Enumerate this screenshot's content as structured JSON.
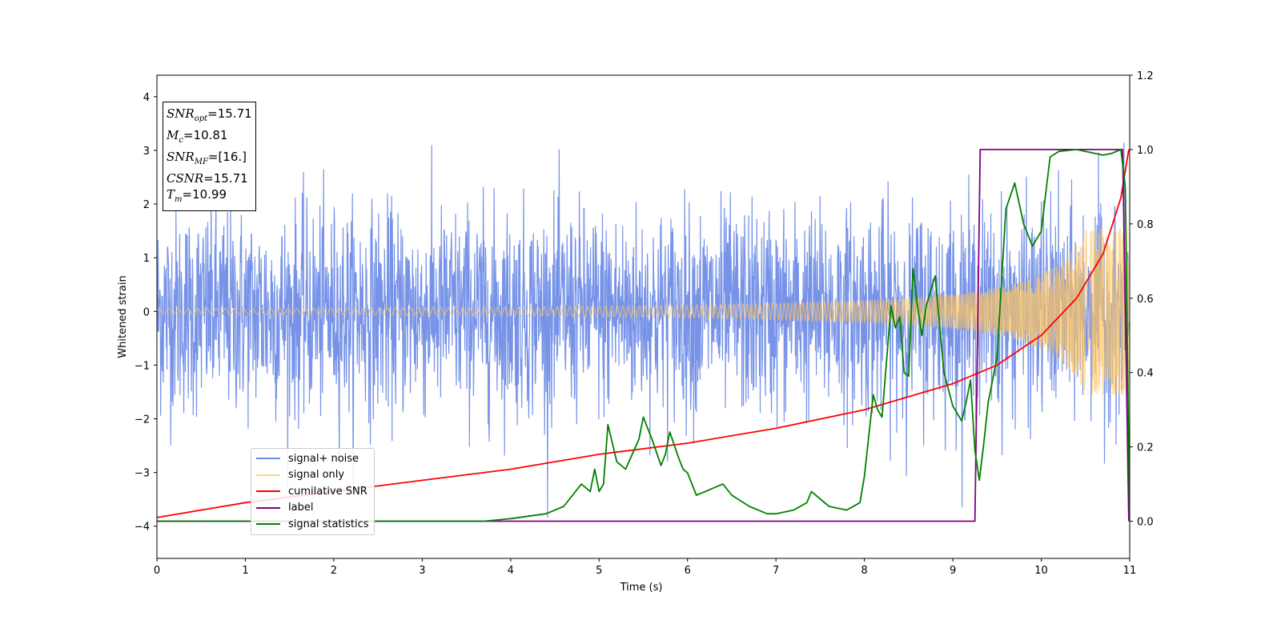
{
  "chart_data": {
    "type": "line",
    "xlabel": "Time (s)",
    "ylabel": "Whitened strain",
    "xlim": [
      0,
      11
    ],
    "ylim_left": [
      -4.6,
      4.4
    ],
    "ylim_right": [
      -0.1,
      1.2
    ],
    "xticks": [
      "0",
      "1",
      "2",
      "3",
      "4",
      "5",
      "6",
      "7",
      "8",
      "9",
      "10",
      "11"
    ],
    "yticks_left": [
      "4",
      "3",
      "2",
      "1",
      "0",
      "−1",
      "−2",
      "−3",
      "−4"
    ],
    "yticks_left_values": [
      4,
      3,
      2,
      1,
      0,
      -1,
      -2,
      -3,
      -4
    ],
    "yticks_right": [
      "1.2",
      "1.0",
      "0.8",
      "0.6",
      "0.4",
      "0.2",
      "0.0"
    ],
    "yticks_right_values": [
      1.2,
      1.0,
      0.8,
      0.6,
      0.4,
      0.2,
      0.0
    ],
    "series": [
      {
        "name": "signal+ noise",
        "axis": "left",
        "color": "#6b8ae6",
        "description": "whitened strain: Gaussian noise (std approx 1, spikes to about 4) plus signal",
        "time_range": [
          0,
          10.99
        ]
      },
      {
        "name": "signal only",
        "axis": "left",
        "color": "#ffc55f",
        "description": "chirp with amplitude rising from about 0.05 at t=0 to about 1.5 at t=10.95",
        "time_range": [
          0,
          10.99
        ]
      },
      {
        "name": "cumilative SNR",
        "axis": "right",
        "color": "#ff0000",
        "x": [
          0,
          1,
          2,
          3,
          4,
          5,
          6,
          7,
          8,
          9,
          9.5,
          10,
          10.4,
          10.7,
          10.9,
          10.99
        ],
        "values": [
          0.01,
          0.05,
          0.08,
          0.11,
          0.14,
          0.18,
          0.21,
          0.25,
          0.3,
          0.37,
          0.42,
          0.5,
          0.6,
          0.72,
          0.87,
          1.0
        ]
      },
      {
        "name": "label",
        "axis": "right",
        "color": "#800080",
        "x": [
          0,
          9.25,
          9.31,
          10.92,
          10.99
        ],
        "values": [
          0,
          0,
          1,
          1,
          0
        ]
      },
      {
        "name": "signal statistics",
        "axis": "right",
        "color": "#008000",
        "x": [
          0,
          1,
          2,
          3,
          3.7,
          4,
          4.4,
          4.6,
          4.8,
          4.9,
          4.95,
          5.0,
          5.05,
          5.1,
          5.2,
          5.3,
          5.45,
          5.5,
          5.55,
          5.6,
          5.7,
          5.75,
          5.8,
          5.9,
          5.95,
          6.0,
          6.1,
          6.2,
          6.3,
          6.4,
          6.5,
          6.7,
          6.8,
          6.9,
          7.0,
          7.2,
          7.35,
          7.4,
          7.6,
          7.8,
          7.95,
          8.0,
          8.1,
          8.15,
          8.2,
          8.3,
          8.35,
          8.4,
          8.45,
          8.5,
          8.55,
          8.6,
          8.65,
          8.7,
          8.8,
          8.9,
          9.0,
          9.1,
          9.15,
          9.2,
          9.25,
          9.3,
          9.35,
          9.4,
          9.5,
          9.6,
          9.7,
          9.8,
          9.9,
          10.0,
          10.1,
          10.2,
          10.4,
          10.6,
          10.7,
          10.8,
          10.9,
          10.95,
          11.0
        ],
        "values": [
          0.0,
          0.0,
          0.0,
          0.0,
          0.0,
          0.007,
          0.02,
          0.04,
          0.1,
          0.08,
          0.14,
          0.08,
          0.1,
          0.26,
          0.16,
          0.14,
          0.22,
          0.28,
          0.25,
          0.22,
          0.15,
          0.18,
          0.24,
          0.17,
          0.14,
          0.13,
          0.07,
          0.08,
          0.09,
          0.1,
          0.07,
          0.04,
          0.03,
          0.02,
          0.02,
          0.03,
          0.05,
          0.08,
          0.04,
          0.03,
          0.05,
          0.12,
          0.34,
          0.3,
          0.28,
          0.58,
          0.52,
          0.55,
          0.4,
          0.39,
          0.68,
          0.58,
          0.5,
          0.58,
          0.66,
          0.4,
          0.31,
          0.27,
          0.32,
          0.38,
          0.19,
          0.11,
          0.21,
          0.32,
          0.44,
          0.84,
          0.91,
          0.8,
          0.74,
          0.78,
          0.98,
          0.995,
          1.0,
          0.99,
          0.985,
          0.99,
          1.0,
          0.9,
          0.0
        ]
      }
    ],
    "legend_position": "lower left",
    "grid": false
  },
  "infobox": {
    "snr_opt_label": "SNR",
    "snr_opt_sub": "opt",
    "snr_opt_value": "=15.71",
    "mc_label": "M",
    "mc_sub": "c",
    "mc_value": "=10.81",
    "snr_mf_label": "SNR",
    "snr_mf_sub": "MF",
    "snr_mf_value": "=[16.]",
    "csnr_label": "CSNR",
    "csnr_value": "=15.71",
    "tm_label": "T",
    "tm_sub": "m",
    "tm_value": "=10.99"
  }
}
